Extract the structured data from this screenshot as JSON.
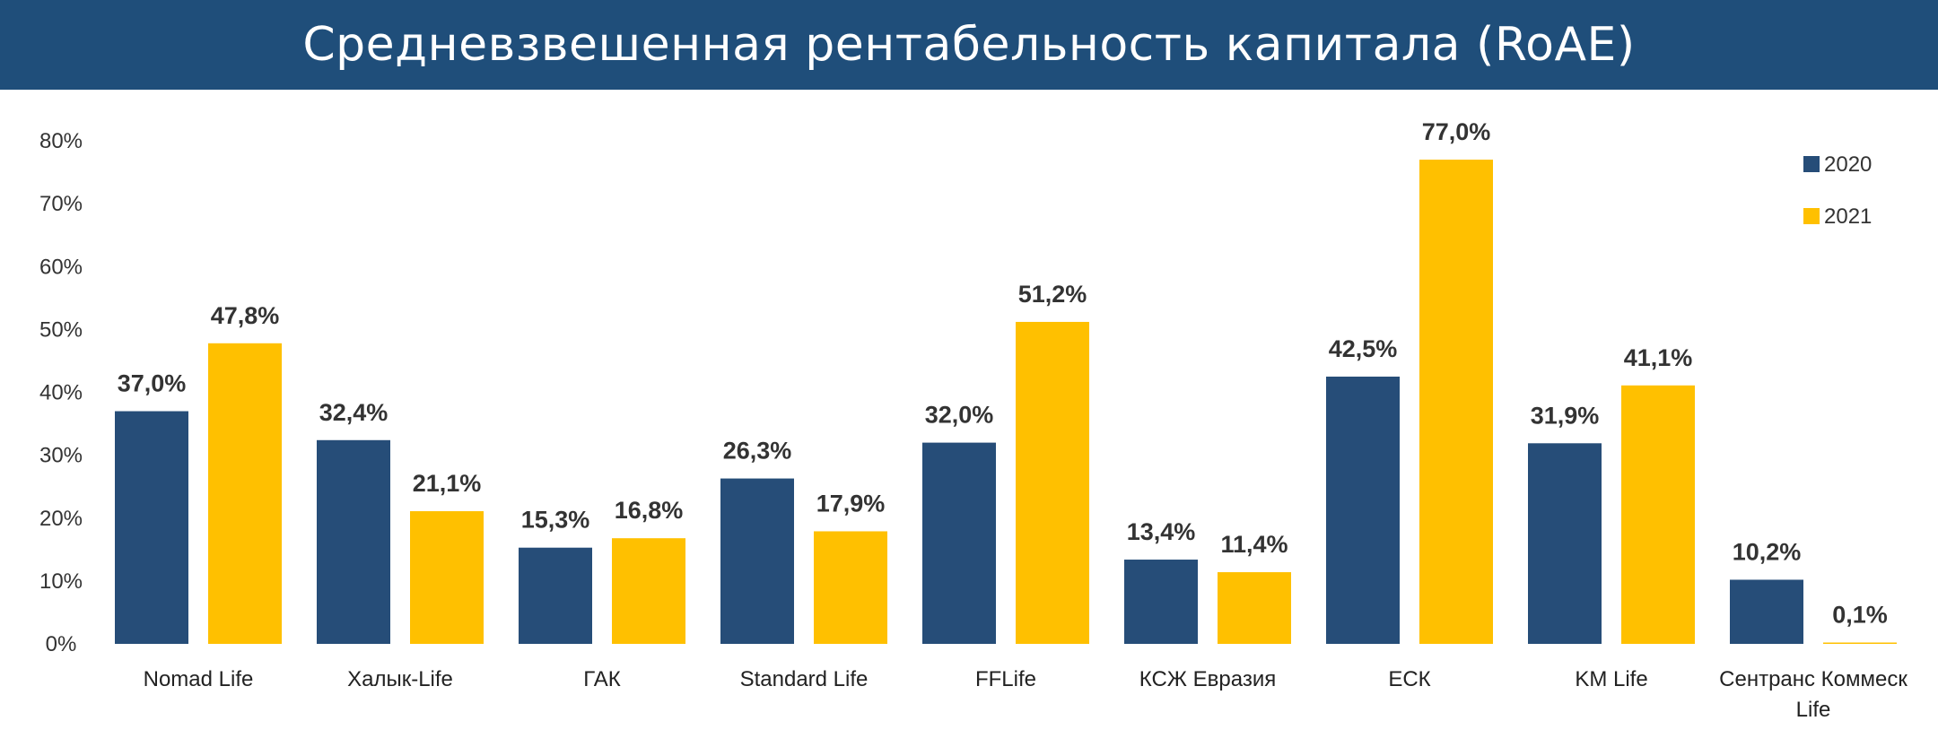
{
  "header": {
    "title": "Средневзвешенная рентабельность капитала (RoAE)"
  },
  "chart_data": {
    "type": "bar",
    "title": "Средневзвешенная рентабельность капитала (RoAE)",
    "categories": [
      "Nomad Life",
      "Халык-Life",
      "ГАК",
      "Standard Life",
      "FFLife",
      "КСЖ Евразия",
      "ЕСК",
      "KM Life",
      "Сентранс Коммеск Life"
    ],
    "category_lines": [
      [
        "Nomad Life"
      ],
      [
        "Халык-Life"
      ],
      [
        "ГАК"
      ],
      [
        "Standard Life"
      ],
      [
        "FFLife"
      ],
      [
        "КСЖ Евразия"
      ],
      [
        "ЕСК"
      ],
      [
        "KM Life"
      ],
      [
        "Сентранс Коммеск",
        "Life"
      ]
    ],
    "series": [
      {
        "name": "2020",
        "color": "#264d78",
        "values": [
          37.0,
          32.4,
          15.3,
          26.3,
          32.0,
          13.4,
          42.5,
          31.9,
          10.2
        ],
        "labels": [
          "37,0%",
          "32,4%",
          "15,3%",
          "26,3%",
          "32,0%",
          "13,4%",
          "42,5%",
          "31,9%",
          "10,2%"
        ]
      },
      {
        "name": "2021",
        "color": "#ffc000",
        "values": [
          47.8,
          21.1,
          16.8,
          17.9,
          51.2,
          11.4,
          77.0,
          41.1,
          0.1
        ],
        "labels": [
          "47,8%",
          "21,1%",
          "16,8%",
          "17,9%",
          "51,2%",
          "11,4%",
          "77,0%",
          "41,1%",
          "0,1%"
        ]
      }
    ],
    "yticks": [
      0,
      10,
      20,
      30,
      40,
      50,
      60,
      70,
      80
    ],
    "ytick_labels": [
      "0%",
      "10%",
      "20%",
      "30%",
      "40%",
      "50%",
      "60%",
      "70%",
      "80%"
    ],
    "ylim": [
      0,
      80
    ],
    "grid": false,
    "legend": "top-right"
  }
}
